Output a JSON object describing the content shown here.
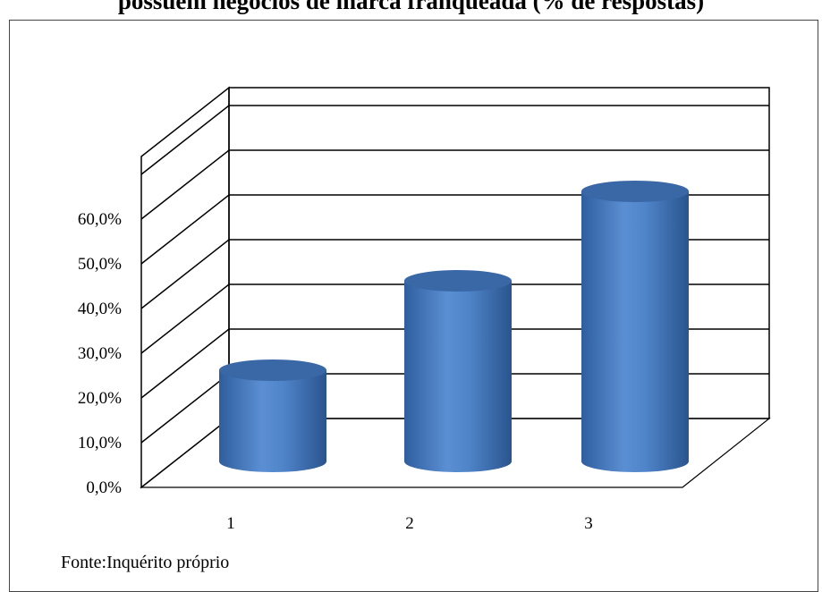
{
  "chart_data": {
    "type": "bar",
    "title": "possuem negócios de marca franqueada (% de respostas)",
    "categories": [
      "1",
      "2",
      "3"
    ],
    "values": [
      20.0,
      40.0,
      60.0
    ],
    "ylim": [
      0,
      60
    ],
    "yticks": [
      "0,0%",
      "10,0%",
      "20,0%",
      "30,0%",
      "40,0%",
      "50,0%",
      "60,0%"
    ],
    "xlabel": "",
    "ylabel": "",
    "grid": true,
    "bar_shape": "cylinder",
    "bar_color": "#4a7ec4"
  },
  "source_note": "Fonte:Inquérito próprio"
}
